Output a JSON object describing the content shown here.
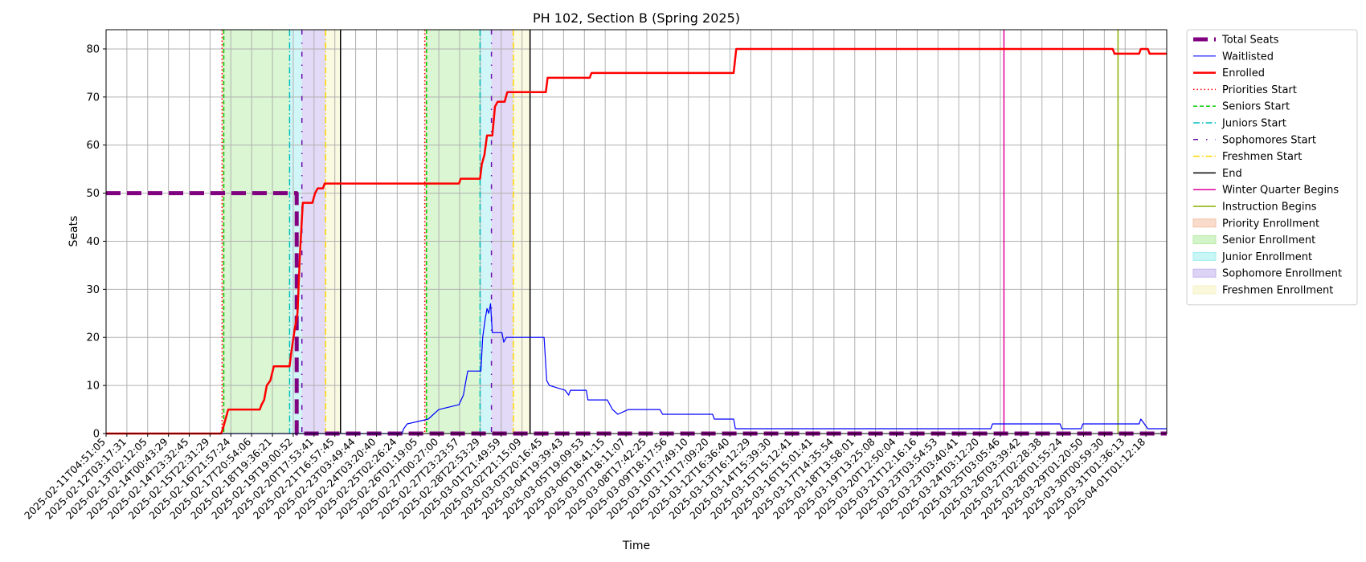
{
  "chart_data": {
    "type": "line",
    "title": "PH 102, Section B (Spring 2025)",
    "xlabel": "Time",
    "ylabel": "Seats",
    "ylim": [
      0,
      84
    ],
    "yticks": [
      0,
      10,
      20,
      30,
      40,
      50,
      60,
      70,
      80
    ],
    "xlim": [
      "2025-02-11T04:51:05",
      "2025-04-02T13:30:00"
    ],
    "xtick_labels": [
      "2025-02-11T04:51:05",
      "2025-02-12T03:17:31",
      "2025-02-13T02:12:05",
      "2025-02-14T00:43:29",
      "2025-02-14T23:32:45",
      "2025-02-15T22:31:29",
      "2025-02-16T21:57:24",
      "2025-02-17T20:54:06",
      "2025-02-18T19:36:21",
      "2025-02-19T19:00:52",
      "2025-02-20T17:53:41",
      "2025-02-21T16:57:45",
      "2025-02-23T03:49:44",
      "2025-02-24T03:20:40",
      "2025-02-25T02:26:24",
      "2025-02-26T01:19:05",
      "2025-02-27T00:27:00",
      "2025-02-27T23:23:57",
      "2025-02-28T22:53:29",
      "2025-03-01T21:49:59",
      "2025-03-02T21:15:09",
      "2025-03-03T20:16:45",
      "2025-03-04T19:39:43",
      "2025-03-05T19:09:53",
      "2025-03-06T18:41:15",
      "2025-03-07T18:11:07",
      "2025-03-08T17:42:25",
      "2025-03-09T18:17:56",
      "2025-03-10T17:49:10",
      "2025-03-11T17:09:20",
      "2025-03-12T16:36:40",
      "2025-03-13T16:12:29",
      "2025-03-14T15:39:30",
      "2025-03-15T15:12:41",
      "2025-03-16T15:01:41",
      "2025-03-17T14:35:54",
      "2025-03-18T13:58:01",
      "2025-03-19T13:25:08",
      "2025-03-20T12:50:04",
      "2025-03-21T12:16:16",
      "2025-03-23T03:54:53",
      "2025-03-23T03:40:41",
      "2025-03-24T03:12:20",
      "2025-03-25T03:05:46",
      "2025-03-26T03:39:42",
      "2025-03-27T02:28:38",
      "2025-03-28T01:55:24",
      "2025-03-29T01:20:50",
      "2025-03-30T00:59:30",
      "2025-03-31T01:36:13",
      "2025-04-01T01:12:18"
    ],
    "grid": true,
    "legend_position": "outside-right-top",
    "series": [
      {
        "name": "Total Seats",
        "color": "#800080",
        "style": "dashed-thick",
        "points": [
          [
            "2025-02-11T04:51:05",
            50
          ],
          [
            "2025-02-20T06:00:00",
            50
          ],
          [
            "2025-02-20T06:00:00",
            0
          ],
          [
            "2025-04-02T13:30:00",
            0
          ]
        ]
      },
      {
        "name": "Waitlisted",
        "color": "#0000ff",
        "style": "solid-thin",
        "points": [
          [
            "2025-02-11T04:51:05",
            0
          ],
          [
            "2025-02-25T06:00:00",
            0
          ],
          [
            "2025-02-25T08:00:00",
            1
          ],
          [
            "2025-02-25T12:00:00",
            2
          ],
          [
            "2025-02-26T12:00:00",
            3
          ],
          [
            "2025-02-26T18:00:00",
            4
          ],
          [
            "2025-02-27T00:00:00",
            5
          ],
          [
            "2025-02-27T23:00:00",
            6
          ],
          [
            "2025-02-28T04:00:00",
            8
          ],
          [
            "2025-02-28T06:00:00",
            10
          ],
          [
            "2025-02-28T09:00:00",
            13
          ],
          [
            "2025-03-01T00:00:00",
            13
          ],
          [
            "2025-03-01T02:00:00",
            20
          ],
          [
            "2025-03-01T05:00:00",
            24
          ],
          [
            "2025-03-01T07:00:00",
            26
          ],
          [
            "2025-03-01T09:00:00",
            25
          ],
          [
            "2025-03-01T11:00:00",
            27
          ],
          [
            "2025-03-01T13:00:00",
            21
          ],
          [
            "2025-03-02T00:00:00",
            21
          ],
          [
            "2025-03-02T02:00:00",
            19
          ],
          [
            "2025-03-02T05:00:00",
            20
          ],
          [
            "2025-03-04T00:00:00",
            20
          ],
          [
            "2025-03-04T03:00:00",
            11
          ],
          [
            "2025-03-04T06:00:00",
            10
          ],
          [
            "2025-03-05T00:00:00",
            9
          ],
          [
            "2025-03-05T04:00:00",
            8
          ],
          [
            "2025-03-05T06:00:00",
            9
          ],
          [
            "2025-03-06T00:00:00",
            9
          ],
          [
            "2025-03-06T02:00:00",
            7
          ],
          [
            "2025-03-07T00:00:00",
            7
          ],
          [
            "2025-03-07T06:00:00",
            5
          ],
          [
            "2025-03-07T12:00:00",
            4
          ],
          [
            "2025-03-08T00:00:00",
            5
          ],
          [
            "2025-03-09T12:00:00",
            5
          ],
          [
            "2025-03-09T15:00:00",
            4
          ],
          [
            "2025-03-12T00:00:00",
            4
          ],
          [
            "2025-03-12T02:00:00",
            3
          ],
          [
            "2025-03-13T00:00:00",
            3
          ],
          [
            "2025-03-13T02:00:00",
            1
          ],
          [
            "2025-03-25T05:00:00",
            1
          ],
          [
            "2025-03-25T07:00:00",
            2
          ],
          [
            "2025-03-28T12:00:00",
            2
          ],
          [
            "2025-03-28T14:00:00",
            1
          ],
          [
            "2025-03-29T12:00:00",
            1
          ],
          [
            "2025-03-29T14:00:00",
            2
          ],
          [
            "2025-04-01T06:00:00",
            2
          ],
          [
            "2025-04-01T08:00:00",
            3
          ],
          [
            "2025-04-01T12:00:00",
            2
          ],
          [
            "2025-04-01T16:00:00",
            1
          ],
          [
            "2025-04-02T13:30:00",
            1
          ]
        ]
      },
      {
        "name": "Enrolled",
        "color": "#ff0000",
        "style": "solid-thick",
        "points": [
          [
            "2025-02-11T04:51:05",
            0
          ],
          [
            "2025-02-16T16:00:00",
            0
          ],
          [
            "2025-02-16T18:00:00",
            1
          ],
          [
            "2025-02-16T21:00:00",
            3
          ],
          [
            "2025-02-17T00:00:00",
            5
          ],
          [
            "2025-02-18T12:00:00",
            5
          ],
          [
            "2025-02-18T14:00:00",
            6
          ],
          [
            "2025-02-18T17:00:00",
            7
          ],
          [
            "2025-02-18T20:00:00",
            10
          ],
          [
            "2025-02-19T00:00:00",
            11
          ],
          [
            "2025-02-19T04:00:00",
            14
          ],
          [
            "2025-02-19T22:00:00",
            14
          ],
          [
            "2025-02-20T00:00:00",
            17
          ],
          [
            "2025-02-20T04:00:00",
            22
          ],
          [
            "2025-02-20T07:00:00",
            25
          ],
          [
            "2025-02-20T10:00:00",
            38
          ],
          [
            "2025-02-20T13:00:00",
            48
          ],
          [
            "2025-02-21T00:00:00",
            48
          ],
          [
            "2025-02-21T03:00:00",
            50
          ],
          [
            "2025-02-21T06:00:00",
            51
          ],
          [
            "2025-02-21T12:00:00",
            51
          ],
          [
            "2025-02-21T14:00:00",
            52
          ],
          [
            "2025-02-27T23:00:00",
            52
          ],
          [
            "2025-02-28T01:00:00",
            53
          ],
          [
            "2025-02-28T23:00:00",
            53
          ],
          [
            "2025-03-01T01:00:00",
            56
          ],
          [
            "2025-03-01T04:00:00",
            58
          ],
          [
            "2025-03-01T07:00:00",
            62
          ],
          [
            "2025-03-01T13:00:00",
            62
          ],
          [
            "2025-03-01T16:00:00",
            68
          ],
          [
            "2025-03-01T19:00:00",
            69
          ],
          [
            "2025-03-02T03:00:00",
            69
          ],
          [
            "2025-03-02T06:00:00",
            71
          ],
          [
            "2025-03-04T02:00:00",
            71
          ],
          [
            "2025-03-04T04:00:00",
            74
          ],
          [
            "2025-03-06T04:00:00",
            74
          ],
          [
            "2025-03-06T06:00:00",
            75
          ],
          [
            "2025-03-13T00:00:00",
            75
          ],
          [
            "2025-03-13T03:00:00",
            80
          ],
          [
            "2025-03-31T00:00:00",
            80
          ],
          [
            "2025-03-31T02:00:00",
            79
          ],
          [
            "2025-04-01T06:00:00",
            79
          ],
          [
            "2025-04-01T08:00:00",
            80
          ],
          [
            "2025-04-01T16:00:00",
            80
          ],
          [
            "2025-04-01T18:00:00",
            79
          ],
          [
            "2025-04-02T13:30:00",
            79
          ]
        ]
      }
    ],
    "vertical_lines": [
      {
        "name": "Priorities Start",
        "color": "#ff0000",
        "style": "dotted",
        "x": [
          "2025-02-16T17:00:00",
          "2025-02-26T08:00:00"
        ]
      },
      {
        "name": "Seniors Start",
        "color": "#00cc00",
        "style": "dashed",
        "x": [
          "2025-02-16T19:00:00",
          "2025-02-26T10:00:00"
        ]
      },
      {
        "name": "Juniors Start",
        "color": "#00bfbf",
        "style": "dashdot",
        "x": [
          "2025-02-19T22:00:00",
          "2025-02-28T23:00:00"
        ]
      },
      {
        "name": "Sophomores Start",
        "color": "#6a0dad",
        "style": "loosedashdot",
        "x": [
          "2025-02-20T12:00:00",
          "2025-03-01T12:00:00"
        ]
      },
      {
        "name": "Freshmen Start",
        "color": "#ffd700",
        "style": "dashdot",
        "x": [
          "2025-02-21T15:00:00",
          "2025-03-02T13:00:00"
        ]
      },
      {
        "name": "End",
        "color": "#000000",
        "style": "solid",
        "x": [
          "2025-02-22T08:00:00",
          "2025-03-03T08:00:00"
        ]
      },
      {
        "name": "Winter Quarter Begins",
        "color": "#e0009b",
        "style": "solid",
        "x": [
          "2025-03-25T20:00:00"
        ]
      },
      {
        "name": "Instruction Begins",
        "color": "#8ab000",
        "style": "solid",
        "x": [
          "2025-03-31T06:00:00"
        ]
      }
    ],
    "shaded_regions": [
      {
        "name": "Priority Enrollment",
        "color": "#f4c3a8",
        "ranges": [
          [
            "2025-02-16T17:00:00",
            "2025-02-16T19:00:00"
          ],
          [
            "2025-02-26T08:00:00",
            "2025-02-26T10:00:00"
          ]
        ]
      },
      {
        "name": "Senior Enrollment",
        "color": "#b6eda5",
        "ranges": [
          [
            "2025-02-16T19:00:00",
            "2025-02-19T22:00:00"
          ],
          [
            "2025-02-26T10:00:00",
            "2025-02-28T23:00:00"
          ]
        ]
      },
      {
        "name": "Junior Enrollment",
        "color": "#a3eef0",
        "ranges": [
          [
            "2025-02-19T22:00:00",
            "2025-02-20T12:00:00"
          ],
          [
            "2025-02-28T23:00:00",
            "2025-03-01T12:00:00"
          ]
        ]
      },
      {
        "name": "Sophomore Enrollment",
        "color": "#c6b6ee",
        "ranges": [
          [
            "2025-02-20T12:00:00",
            "2025-02-21T15:00:00"
          ],
          [
            "2025-03-01T12:00:00",
            "2025-03-02T13:00:00"
          ]
        ]
      },
      {
        "name": "Freshmen Enrollment",
        "color": "#f6f3c3",
        "ranges": [
          [
            "2025-02-21T15:00:00",
            "2025-02-22T08:00:00"
          ],
          [
            "2025-03-02T13:00:00",
            "2025-03-03T08:00:00"
          ]
        ]
      }
    ]
  }
}
